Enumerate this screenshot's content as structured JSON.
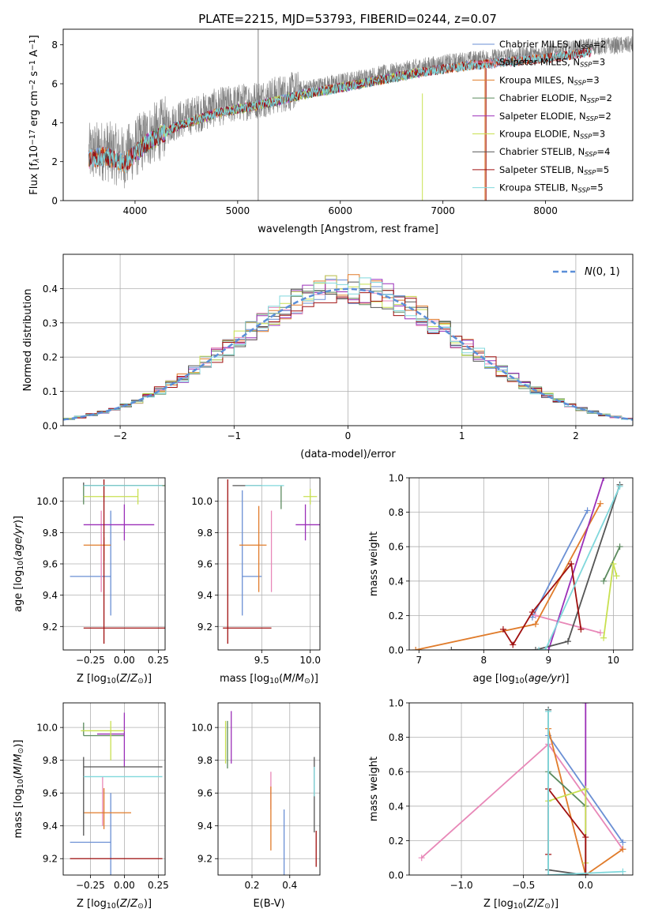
{
  "figure_title": "PLATE=2215, MJD=53793, FIBERID=0244, z=0.07",
  "colors": {
    "chabrier_miles": "#6a8fd4",
    "salpeter_miles": "#e888b8",
    "kroupa_miles": "#e07b2a",
    "chabrier_elodie": "#5b8a5e",
    "salpeter_elodie": "#9b2fb8",
    "kroupa_elodie": "#c8e050",
    "chabrier_stelib": "#555555",
    "salpeter_stelib": "#a01010",
    "kroupa_stelib": "#80d8dc",
    "data": "#808080",
    "gaussian": "#5b8fd8"
  },
  "chart_data": [
    {
      "id": "spectrum",
      "type": "line",
      "title": "PLATE=2215, MJD=53793, FIBERID=0244, z=0.07",
      "xlabel": "wavelength [Angstrom, rest frame]",
      "ylabel_parts": [
        "Flux [f",
        "λ",
        "10",
        "−17",
        " erg cm",
        "−2",
        " s",
        "−1",
        " A",
        "−1",
        "]"
      ],
      "xlim": [
        3300,
        8850
      ],
      "ylim": [
        0,
        8.8
      ],
      "xticks": [
        4000,
        5000,
        6000,
        7000,
        8000
      ],
      "yticks": [
        0,
        2,
        4,
        6,
        8
      ],
      "continuum_knots": {
        "x": [
          3550,
          3700,
          3900,
          4100,
          4400,
          4800,
          5200,
          5600,
          6000,
          6400,
          6800,
          7200,
          7600,
          8000,
          8400,
          8850
        ],
        "y": [
          2.4,
          2.6,
          2.2,
          3.2,
          4.1,
          4.8,
          5.2,
          5.7,
          6.1,
          6.5,
          6.9,
          7.2,
          7.4,
          7.6,
          7.9,
          8.0
        ]
      },
      "legend": [
        {
          "label": "Chabrier MILES, N",
          "sub": "SSP",
          "tail": "=2",
          "color_key": "chabrier_miles"
        },
        {
          "label": "Salpeter MILES, N",
          "sub": "SSP",
          "tail": "=3",
          "color_key": "salpeter_miles"
        },
        {
          "label": "Kroupa MILES, N",
          "sub": "SSP",
          "tail": "=3",
          "color_key": "kroupa_miles"
        },
        {
          "label": "Chabrier ELODIE, N",
          "sub": "SSP",
          "tail": "=2",
          "color_key": "chabrier_elodie"
        },
        {
          "label": "Salpeter ELODIE, N",
          "sub": "SSP",
          "tail": "=2",
          "color_key": "salpeter_elodie"
        },
        {
          "label": "Kroupa ELODIE, N",
          "sub": "SSP",
          "tail": "=3",
          "color_key": "kroupa_elodie"
        },
        {
          "label": "Chabrier STELIB, N",
          "sub": "SSP",
          "tail": "=4",
          "color_key": "chabrier_stelib"
        },
        {
          "label": "Salpeter STELIB, N",
          "sub": "SSP",
          "tail": "=5",
          "color_key": "salpeter_stelib"
        },
        {
          "label": "Kroupa STELIB, N",
          "sub": "SSP",
          "tail": "=5",
          "color_key": "kroupa_stelib"
        }
      ]
    },
    {
      "id": "residuals",
      "type": "histogram",
      "xlabel": "(data-model)/error",
      "ylabel": "Normed distribution",
      "xlim": [
        -2.5,
        2.5
      ],
      "ylim": [
        0,
        0.5
      ],
      "xticks": [
        -2,
        -1,
        0,
        1,
        2
      ],
      "yticks": [
        0.0,
        0.1,
        0.2,
        0.3,
        0.4
      ],
      "bin_width": 0.1,
      "legend_label": "N(0,1)",
      "grid": true
    },
    {
      "id": "z_age",
      "type": "errorbar",
      "xlabel": "Z [log10(Z/Z⊙)]",
      "ylabel": "age  [log10(age/yr)]",
      "xlim": [
        -0.45,
        0.3
      ],
      "ylim": [
        9.05,
        10.15
      ],
      "xticks": [
        -0.25,
        0.0,
        0.25
      ],
      "yticks": [
        9.2,
        9.4,
        9.6,
        9.8,
        10.0
      ],
      "points": [
        {
          "c": "chabrier_miles",
          "x": -0.1,
          "xerr": [
            0.3,
            0.0
          ],
          "y": 9.52,
          "yerr": [
            0.25,
            0.42
          ]
        },
        {
          "c": "salpeter_miles",
          "x": -0.17,
          "xerr": [
            0.0,
            0.0
          ],
          "y": 9.72,
          "yerr": [
            0.3,
            0.22
          ]
        },
        {
          "c": "kroupa_miles",
          "x": -0.15,
          "xerr": [
            0.15,
            0.05
          ],
          "y": 9.72,
          "yerr": [
            0.1,
            0.05
          ]
        },
        {
          "c": "chabrier_elodie",
          "x": -0.3,
          "xerr": [
            0.0,
            0.6
          ],
          "y": 10.1,
          "yerr": [
            0.12,
            0.0
          ]
        },
        {
          "c": "salpeter_elodie",
          "x": 0.0,
          "xerr": [
            0.3,
            0.22
          ],
          "y": 9.85,
          "yerr": [
            0.1,
            0.13
          ]
        },
        {
          "c": "kroupa_elodie",
          "x": 0.1,
          "xerr": [
            0.4,
            0.0
          ],
          "y": 10.03,
          "yerr": [
            0.05,
            0.05
          ]
        },
        {
          "c": "chabrier_stelib",
          "x": -0.3,
          "xerr": [
            0.0,
            0.58
          ],
          "y": 10.1,
          "yerr": [
            0.0,
            0.02
          ]
        },
        {
          "c": "salpeter_stelib",
          "x": -0.15,
          "xerr": [
            0.15,
            0.45
          ],
          "y": 9.19,
          "yerr": [
            0.1,
            0.95
          ]
        },
        {
          "c": "kroupa_stelib",
          "x": -0.3,
          "xerr": [
            0.0,
            0.58
          ],
          "y": 10.1,
          "yerr": [
            0.0,
            0.0
          ]
        }
      ]
    },
    {
      "id": "mass_age",
      "type": "errorbar",
      "xlabel": "mass [log10(M/M⊙)]",
      "xlim": [
        9.05,
        10.1
      ],
      "ylim": [
        9.05,
        10.15
      ],
      "xticks": [
        9.5,
        10.0
      ],
      "yticks": [
        9.2,
        9.4,
        9.6,
        9.8,
        10.0
      ],
      "points": [
        {
          "c": "chabrier_miles",
          "x": 9.3,
          "xerr": [
            0.0,
            0.2
          ],
          "y": 9.52,
          "yerr": [
            0.25,
            0.55
          ]
        },
        {
          "c": "salpeter_miles",
          "x": 9.6,
          "xerr": [
            0.0,
            0.0
          ],
          "y": 9.72,
          "yerr": [
            0.3,
            0.22
          ]
        },
        {
          "c": "kroupa_miles",
          "x": 9.47,
          "xerr": [
            0.2,
            0.08
          ],
          "y": 9.72,
          "yerr": [
            0.3,
            0.25
          ]
        },
        {
          "c": "chabrier_elodie",
          "x": 9.7,
          "xerr": [
            0.0,
            0.0
          ],
          "y": 10.1,
          "yerr": [
            0.15,
            0.0
          ]
        },
        {
          "c": "salpeter_elodie",
          "x": 9.95,
          "xerr": [
            0.1,
            0.15
          ],
          "y": 9.85,
          "yerr": [
            0.1,
            0.13
          ]
        },
        {
          "c": "kroupa_elodie",
          "x": 10.0,
          "xerr": [
            0.07,
            0.07
          ],
          "y": 10.03,
          "yerr": [
            0.05,
            0.05
          ]
        },
        {
          "c": "chabrier_stelib",
          "x": 9.5,
          "xerr": [
            0.3,
            0.0
          ],
          "y": 10.1,
          "yerr": [
            0.0,
            0.0
          ]
        },
        {
          "c": "salpeter_stelib",
          "x": 9.15,
          "xerr": [
            0.05,
            0.45
          ],
          "y": 9.19,
          "yerr": [
            0.1,
            0.95
          ]
        },
        {
          "c": "kroupa_stelib",
          "x": 9.45,
          "xerr": [
            0.12,
            0.28
          ],
          "y": 10.1,
          "yerr": [
            0.0,
            0.0
          ]
        }
      ]
    },
    {
      "id": "age_weight",
      "type": "line",
      "xlabel": "age  [log10(age/yr)]",
      "ylabel": "mass weight",
      "xlim": [
        6.85,
        10.3
      ],
      "ylim": [
        0,
        1
      ],
      "xticks": [
        7,
        8,
        9,
        10
      ],
      "yticks": [
        0.0,
        0.2,
        0.4,
        0.6,
        0.8,
        1.0
      ],
      "series": [
        {
          "c": "chabrier_miles",
          "x": [
            8.75,
            9.6
          ],
          "y": [
            0.19,
            0.81
          ]
        },
        {
          "c": "salpeter_miles",
          "x": [
            8.8,
            9.8
          ],
          "y": [
            0.2,
            0.1
          ]
        },
        {
          "c": "kroupa_miles",
          "x": [
            6.95,
            8.8,
            9.8
          ],
          "y": [
            0.0,
            0.15,
            0.85
          ]
        },
        {
          "c": "chabrier_elodie",
          "x": [
            9.85,
            10.1
          ],
          "y": [
            0.4,
            0.6
          ]
        },
        {
          "c": "salpeter_elodie",
          "x": [
            9.0,
            9.85
          ],
          "y": [
            0.0,
            1.0
          ]
        },
        {
          "c": "kroupa_elodie",
          "x": [
            9.85,
            10.0,
            10.05
          ],
          "y": [
            0.07,
            0.5,
            0.43
          ]
        },
        {
          "c": "chabrier_stelib",
          "x": [
            7.5,
            8.8,
            9.3,
            10.1
          ],
          "y": [
            0.0,
            0.0,
            0.05,
            0.96
          ]
        },
        {
          "c": "salpeter_stelib",
          "x": [
            8.3,
            8.45,
            8.75,
            9.35,
            9.5
          ],
          "y": [
            0.12,
            0.03,
            0.22,
            0.5,
            0.12
          ]
        },
        {
          "c": "kroupa_stelib",
          "x": [
            8.85,
            8.95,
            10.1
          ],
          "y": [
            0.0,
            0.0,
            0.95
          ]
        }
      ]
    },
    {
      "id": "z_mass",
      "type": "errorbar",
      "xlabel": "Z [log10(Z/Z⊙)]",
      "ylabel": "mass [log10(M/M⊙)]",
      "xlim": [
        -0.45,
        0.3
      ],
      "ylim": [
        9.1,
        10.15
      ],
      "xticks": [
        -0.25,
        0.0,
        0.25
      ],
      "yticks": [
        9.2,
        9.4,
        9.6,
        9.8,
        10.0
      ],
      "points": [
        {
          "c": "chabrier_miles",
          "x": -0.1,
          "xerr": [
            0.3,
            0.0
          ],
          "y": 9.3,
          "yerr": [
            0.2,
            0.3
          ]
        },
        {
          "c": "salpeter_miles",
          "x": -0.16,
          "xerr": [
            0.0,
            0.0
          ],
          "y": 9.6,
          "yerr": [
            0.2,
            0.1
          ]
        },
        {
          "c": "kroupa_miles",
          "x": -0.15,
          "xerr": [
            0.15,
            0.2
          ],
          "y": 9.48,
          "yerr": [
            0.1,
            0.15
          ]
        },
        {
          "c": "chabrier_elodie",
          "x": -0.3,
          "xerr": [
            0.0,
            0.3
          ],
          "y": 9.95,
          "yerr": [
            0.0,
            0.08
          ]
        },
        {
          "c": "salpeter_elodie",
          "x": 0.0,
          "xerr": [
            0.2,
            0.0
          ],
          "y": 9.96,
          "yerr": [
            0.2,
            0.13
          ]
        },
        {
          "c": "kroupa_elodie",
          "x": -0.1,
          "xerr": [
            0.22,
            0.1
          ],
          "y": 9.98,
          "yerr": [
            0.18,
            0.06
          ]
        },
        {
          "c": "chabrier_stelib",
          "x": -0.3,
          "xerr": [
            0.0,
            0.58
          ],
          "y": 9.76,
          "yerr": [
            0.42,
            0.06
          ]
        },
        {
          "c": "salpeter_stelib",
          "x": -0.2,
          "xerr": [
            0.2,
            0.48
          ],
          "y": 9.2,
          "yerr": [
            0.0,
            0.0
          ]
        },
        {
          "c": "kroupa_stelib",
          "x": -0.3,
          "xerr": [
            0.0,
            0.58
          ],
          "y": 9.7,
          "yerr": [
            0.0,
            0.0
          ]
        }
      ]
    },
    {
      "id": "ebv_mass",
      "type": "errorbar",
      "xlabel": "E(B-V)",
      "xlim": [
        0.02,
        0.56
      ],
      "ylim": [
        9.1,
        10.15
      ],
      "xticks": [
        0.2,
        0.4
      ],
      "yticks": [
        9.2,
        9.4,
        9.6,
        9.8,
        10.0
      ],
      "points": [
        {
          "c": "chabrier_miles",
          "x": 0.37,
          "xerr": [
            0.0,
            0.0
          ],
          "y": 9.3,
          "yerr": [
            0.2,
            0.2
          ]
        },
        {
          "c": "salpeter_miles",
          "x": 0.3,
          "xerr": [
            0.0,
            0.0
          ],
          "y": 9.6,
          "yerr": [
            0.1,
            0.13
          ]
        },
        {
          "c": "kroupa_miles",
          "x": 0.3,
          "xerr": [
            0.0,
            0.0
          ],
          "y": 9.48,
          "yerr": [
            0.23,
            0.16
          ]
        },
        {
          "c": "chabrier_elodie",
          "x": 0.07,
          "xerr": [
            0.0,
            0.0
          ],
          "y": 9.95,
          "yerr": [
            0.2,
            0.09
          ]
        },
        {
          "c": "salpeter_elodie",
          "x": 0.09,
          "xerr": [
            0.0,
            0.0
          ],
          "y": 9.96,
          "yerr": [
            0.18,
            0.14
          ]
        },
        {
          "c": "kroupa_elodie",
          "x": 0.06,
          "xerr": [
            0.0,
            0.0
          ],
          "y": 9.98,
          "yerr": [
            0.2,
            0.06
          ]
        },
        {
          "c": "chabrier_stelib",
          "x": 0.53,
          "xerr": [
            0.0,
            0.0
          ],
          "y": 9.76,
          "yerr": [
            0.4,
            0.06
          ]
        },
        {
          "c": "salpeter_stelib",
          "x": 0.54,
          "xerr": [
            0.0,
            0.0
          ],
          "y": 9.3,
          "yerr": [
            0.15,
            0.07
          ]
        },
        {
          "c": "kroupa_stelib",
          "x": 0.53,
          "xerr": [
            0.0,
            0.0
          ],
          "y": 9.7,
          "yerr": [
            0.12,
            0.06
          ]
        }
      ]
    },
    {
      "id": "z_weight",
      "type": "line",
      "xlabel": "Z [log10(Z/Z⊙)]",
      "ylabel": "mass weight",
      "xlim": [
        -1.42,
        0.38
      ],
      "ylim": [
        0,
        1
      ],
      "xticks": [
        -1.0,
        -0.5,
        0.0
      ],
      "yticks": [
        0.0,
        0.2,
        0.4,
        0.6,
        0.8,
        1.0
      ],
      "series": [
        {
          "c": "chabrier_miles",
          "x": [
            -0.3,
            0.3
          ],
          "y": [
            0.81,
            0.19
          ]
        },
        {
          "c": "salpeter_miles",
          "x": [
            -1.32,
            -0.3,
            0.3
          ],
          "y": [
            0.1,
            0.76,
            0.15
          ]
        },
        {
          "c": "kroupa_miles",
          "x": [
            -0.3,
            0.0,
            0.3
          ],
          "y": [
            0.85,
            0.0,
            0.15
          ]
        },
        {
          "c": "chabrier_elodie",
          "x": [
            -0.3,
            0.0
          ],
          "y": [
            0.6,
            0.4
          ]
        },
        {
          "c": "salpeter_elodie",
          "x": [
            0.0,
            0.0
          ],
          "y": [
            1.0,
            0.0
          ]
        },
        {
          "c": "kroupa_elodie",
          "x": [
            -0.3,
            0.0,
            0.0
          ],
          "y": [
            0.43,
            0.5,
            0.07
          ]
        },
        {
          "c": "chabrier_stelib",
          "x": [
            -0.3,
            -0.3,
            0.0
          ],
          "y": [
            0.96,
            0.03,
            0.0
          ]
        },
        {
          "c": "salpeter_stelib",
          "x": [
            -0.3,
            -0.3,
            0.0,
            0.0
          ],
          "y": [
            0.12,
            0.5,
            0.22,
            0.0
          ]
        },
        {
          "c": "kroupa_stelib",
          "x": [
            -0.3,
            -0.3,
            0.3
          ],
          "y": [
            0.95,
            0.0,
            0.02
          ]
        }
      ]
    }
  ]
}
